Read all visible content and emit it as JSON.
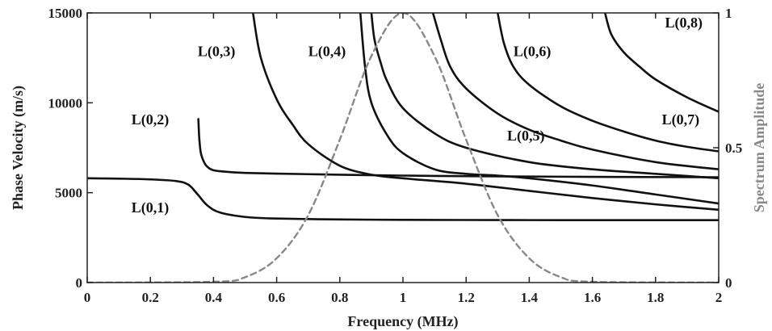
{
  "chart_data": {
    "type": "line",
    "xlabel": "Frequency (MHz)",
    "ylabel": "Phase Velocity (m/s)",
    "y2label": "Spectrum Amplitude",
    "xlim": [
      0,
      2
    ],
    "ylim": [
      0,
      15000
    ],
    "y2lim": [
      0,
      1
    ],
    "xticks": [
      "0",
      "0.2",
      "0.4",
      "0.6",
      "0.8",
      "1",
      "1.2",
      "1.4",
      "1.6",
      "1.8",
      "2"
    ],
    "yticks": [
      "0",
      "5000",
      "10000",
      "15000"
    ],
    "y2ticks": [
      "0",
      "0.5",
      "1"
    ],
    "grid": false,
    "series": [
      {
        "name": "L(0,1)",
        "color": "#111111",
        "points": [
          [
            0,
            5800
          ],
          [
            0.1,
            5780
          ],
          [
            0.2,
            5740
          ],
          [
            0.28,
            5650
          ],
          [
            0.32,
            5450
          ],
          [
            0.35,
            4900
          ],
          [
            0.38,
            4300
          ],
          [
            0.42,
            3900
          ],
          [
            0.5,
            3650
          ],
          [
            0.6,
            3560
          ],
          [
            0.8,
            3510
          ],
          [
            1.0,
            3490
          ],
          [
            1.2,
            3480
          ],
          [
            1.4,
            3475
          ],
          [
            1.6,
            3472
          ],
          [
            1.8,
            3470
          ],
          [
            2.0,
            3470
          ]
        ]
      },
      {
        "name": "L(0,2)",
        "color": "#111111",
        "points": [
          [
            0.352,
            9100
          ],
          [
            0.355,
            8000
          ],
          [
            0.36,
            7200
          ],
          [
            0.37,
            6700
          ],
          [
            0.38,
            6450
          ],
          [
            0.4,
            6250
          ],
          [
            0.45,
            6150
          ],
          [
            0.5,
            6100
          ],
          [
            0.6,
            6060
          ],
          [
            0.8,
            6000
          ],
          [
            1.0,
            5950
          ],
          [
            1.2,
            5920
          ],
          [
            1.4,
            5900
          ],
          [
            1.6,
            5880
          ],
          [
            1.8,
            5870
          ],
          [
            2.0,
            5860
          ]
        ]
      },
      {
        "name": "L(0,3)",
        "color": "#111111",
        "points": [
          [
            0.525,
            15000
          ],
          [
            0.55,
            12500
          ],
          [
            0.6,
            10200
          ],
          [
            0.65,
            8800
          ],
          [
            0.7,
            7700
          ],
          [
            0.8,
            6500
          ],
          [
            0.9,
            6000
          ],
          [
            1.0,
            5800
          ],
          [
            1.2,
            5500
          ],
          [
            1.4,
            5100
          ],
          [
            1.6,
            4700
          ],
          [
            1.8,
            4350
          ],
          [
            2.0,
            4050
          ]
        ]
      },
      {
        "name": "L(0,4)",
        "color": "#111111",
        "points": [
          [
            0.865,
            15000
          ],
          [
            0.88,
            12000
          ],
          [
            0.9,
            10000
          ],
          [
            0.95,
            8200
          ],
          [
            1.0,
            7200
          ],
          [
            1.1,
            6300
          ],
          [
            1.2,
            6050
          ],
          [
            1.3,
            5950
          ],
          [
            1.4,
            5800
          ],
          [
            1.6,
            5400
          ],
          [
            1.8,
            4900
          ],
          [
            2.0,
            4400
          ]
        ]
      },
      {
        "name": "L(0,5)",
        "color": "#111111",
        "points": [
          [
            0.9,
            15000
          ],
          [
            0.91,
            13500
          ],
          [
            0.93,
            12200
          ],
          [
            0.95,
            11200
          ],
          [
            1.0,
            9700
          ],
          [
            1.1,
            8300
          ],
          [
            1.2,
            7500
          ],
          [
            1.4,
            6700
          ],
          [
            1.6,
            6300
          ],
          [
            1.8,
            6050
          ],
          [
            2.0,
            5800
          ]
        ]
      },
      {
        "name": "L(0,6)",
        "color": "#111111",
        "points": [
          [
            1.095,
            15000
          ],
          [
            1.12,
            13500
          ],
          [
            1.15,
            12000
          ],
          [
            1.2,
            10800
          ],
          [
            1.3,
            9400
          ],
          [
            1.4,
            8500
          ],
          [
            1.5,
            7900
          ],
          [
            1.6,
            7400
          ],
          [
            1.8,
            6700
          ],
          [
            2.0,
            6300
          ]
        ]
      },
      {
        "name": "L(0,7)",
        "color": "#111111",
        "points": [
          [
            1.3,
            15000
          ],
          [
            1.32,
            13300
          ],
          [
            1.35,
            12000
          ],
          [
            1.4,
            11000
          ],
          [
            1.5,
            9800
          ],
          [
            1.6,
            9000
          ],
          [
            1.7,
            8400
          ],
          [
            1.8,
            7900
          ],
          [
            1.9,
            7550
          ],
          [
            2.0,
            7300
          ]
        ]
      },
      {
        "name": "L(0,8)",
        "color": "#111111",
        "points": [
          [
            1.64,
            15000
          ],
          [
            1.66,
            13800
          ],
          [
            1.7,
            12800
          ],
          [
            1.75,
            12000
          ],
          [
            1.8,
            11300
          ],
          [
            1.9,
            10300
          ],
          [
            2.0,
            9500
          ]
        ]
      },
      {
        "name": "Spectrum",
        "axis": "right",
        "dashed": true,
        "color": "#888888",
        "points": [
          [
            0,
            0
          ],
          [
            0.4,
            0.003
          ],
          [
            0.5,
            0.02
          ],
          [
            0.6,
            0.09
          ],
          [
            0.7,
            0.25
          ],
          [
            0.8,
            0.53
          ],
          [
            0.9,
            0.84
          ],
          [
            1.0,
            1.0
          ],
          [
            1.1,
            0.84
          ],
          [
            1.2,
            0.53
          ],
          [
            1.3,
            0.25
          ],
          [
            1.4,
            0.09
          ],
          [
            1.5,
            0.02
          ],
          [
            1.6,
            0.003
          ],
          [
            2.0,
            0
          ]
        ]
      }
    ],
    "annotations": [
      {
        "text": "L(0,1)",
        "x": 0.14,
        "y": 3900
      },
      {
        "text": "L(0,2)",
        "x": 0.14,
        "y": 8800
      },
      {
        "text": "L(0,3)",
        "x": 0.35,
        "y": 12600
      },
      {
        "text": "L(0,4)",
        "x": 0.7,
        "y": 12600
      },
      {
        "text": "L(0,5)",
        "x": 1.33,
        "y": 7900
      },
      {
        "text": "L(0,6)",
        "x": 1.35,
        "y": 12600
      },
      {
        "text": "L(0,7)",
        "x": 1.82,
        "y": 8800
      },
      {
        "text": "L(0,8)",
        "x": 1.83,
        "y": 14200
      }
    ]
  }
}
